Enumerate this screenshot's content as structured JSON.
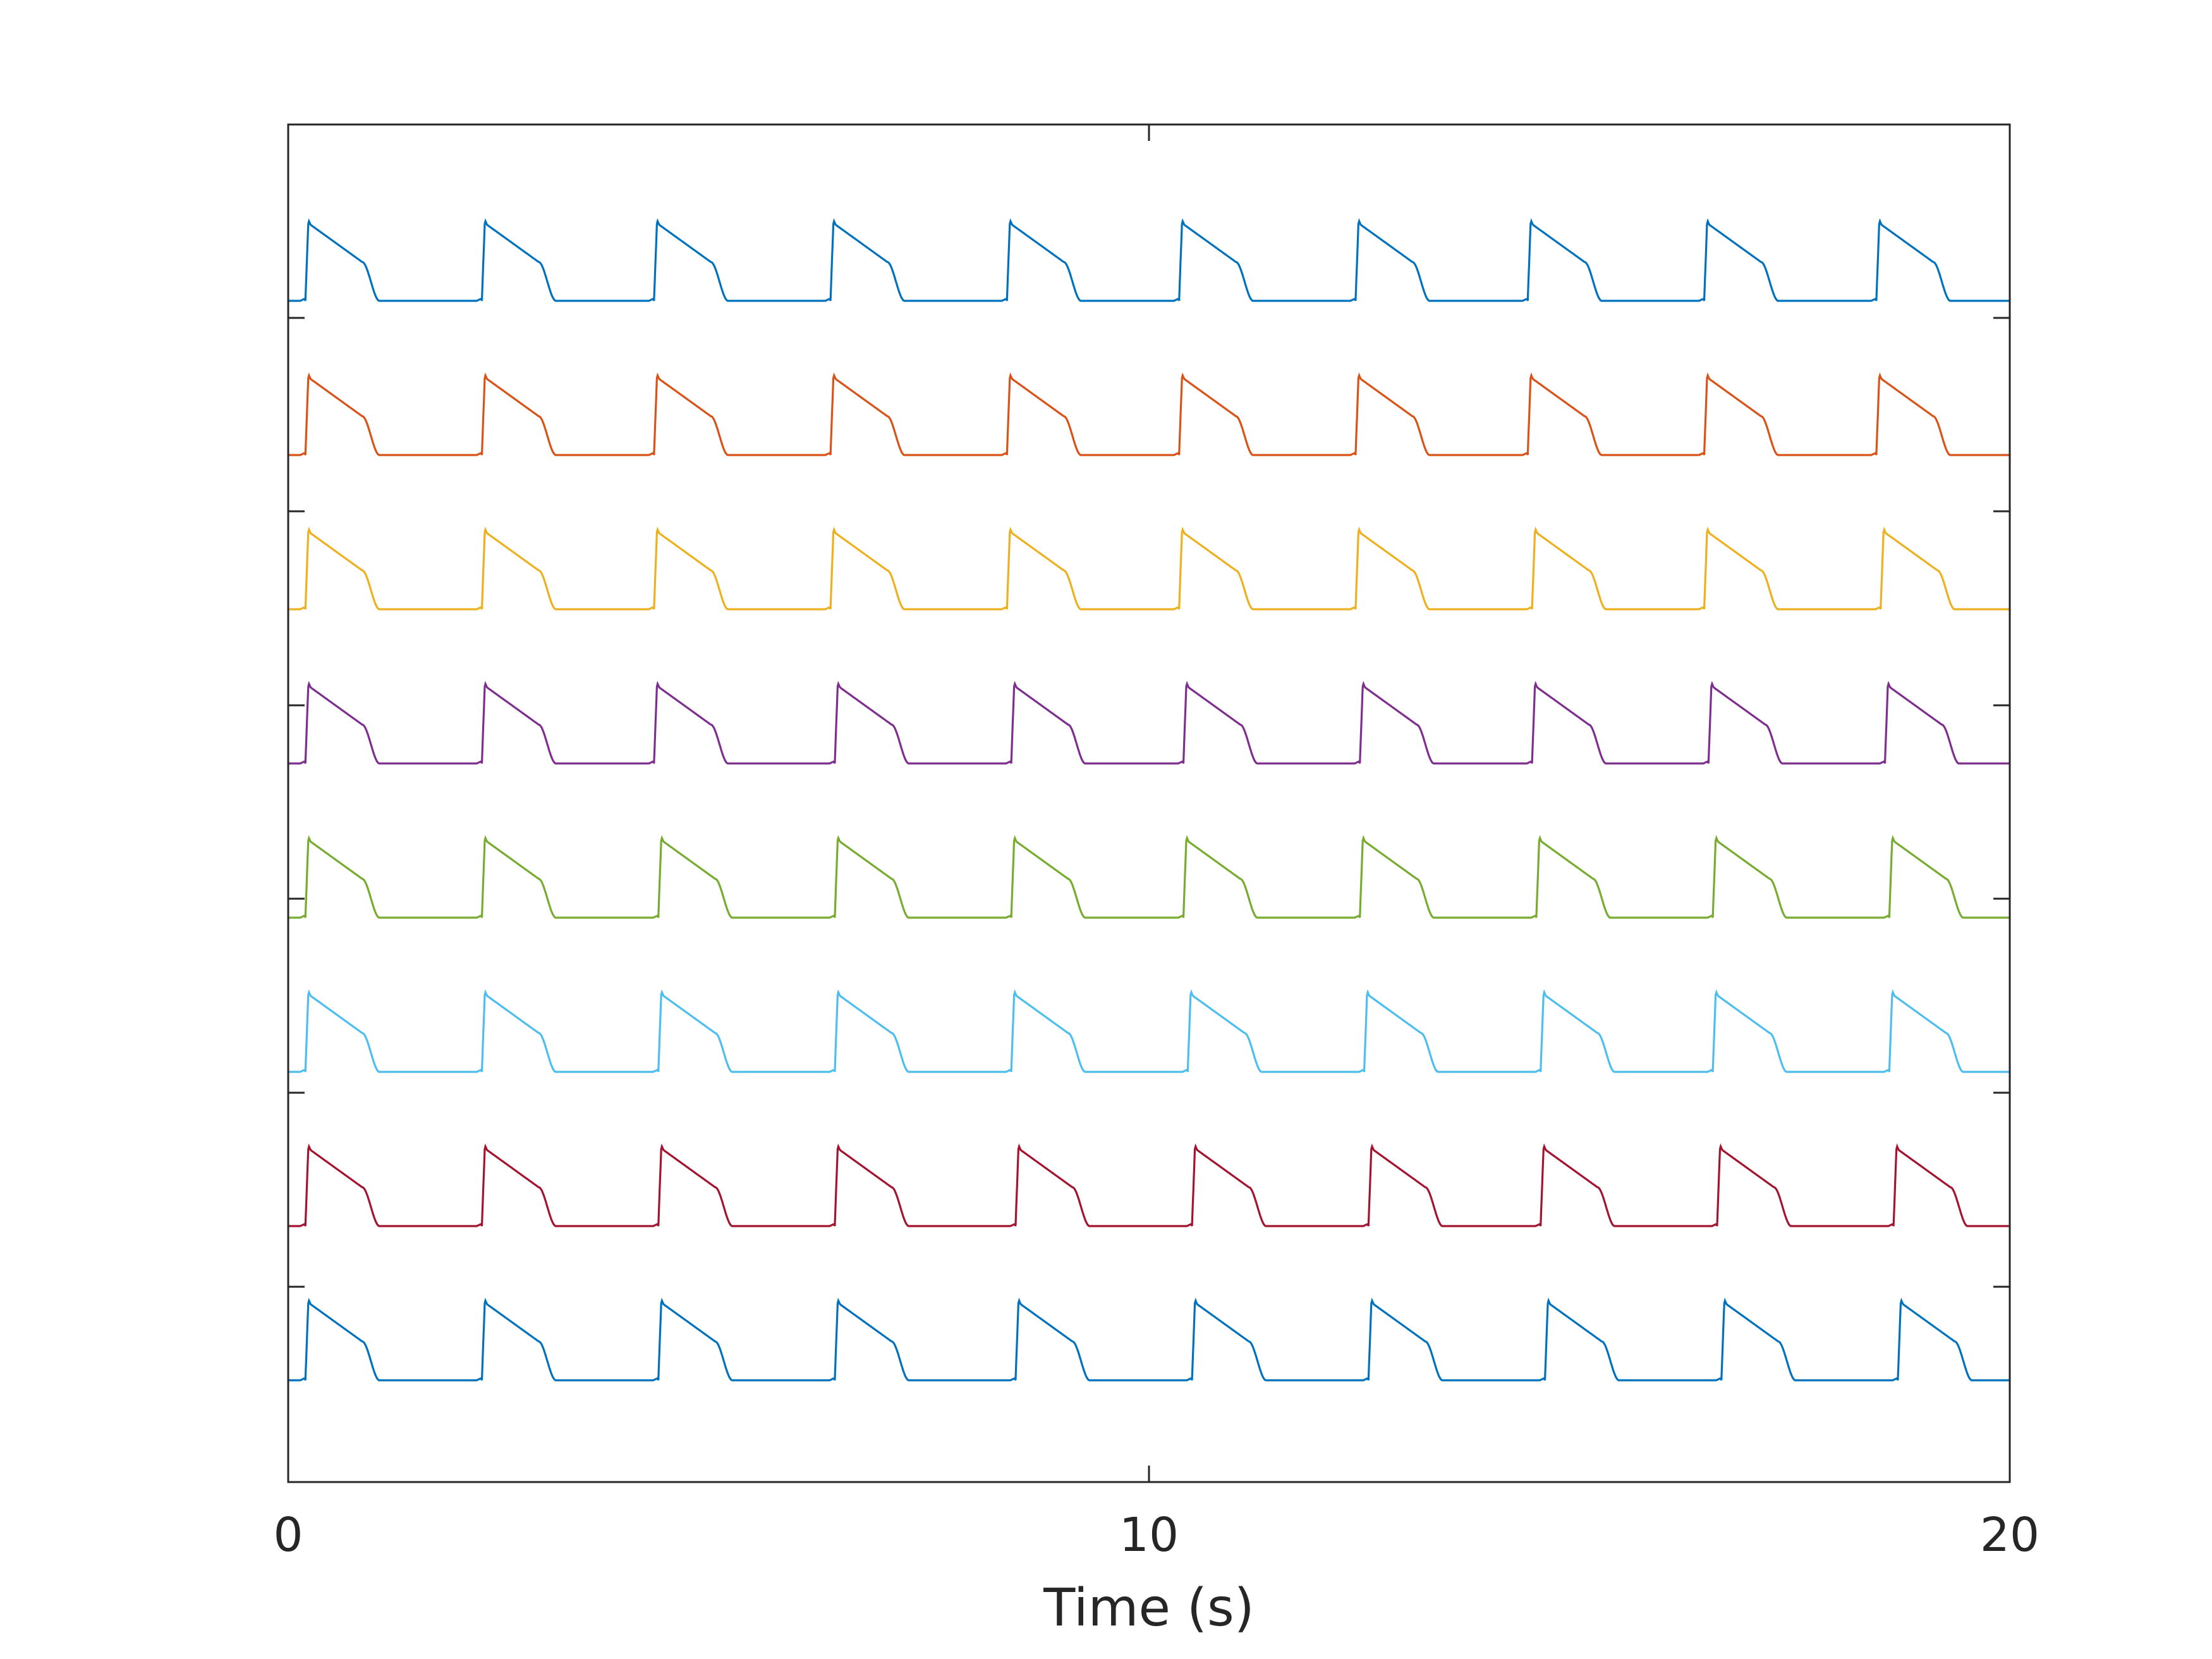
{
  "chart_data": {
    "type": "line",
    "title": "",
    "xlabel": "Time (s)",
    "ylabel": "",
    "xlim": [
      0,
      20
    ],
    "xticks": [
      0,
      10,
      20
    ],
    "xtick_labels": [
      "0",
      "10",
      "20"
    ],
    "yticks_unlabeled": 6,
    "grid": false,
    "legend": "none",
    "trace_form": "stacked cardiac action-potential traces (upstroke, plateau, repolarization, rest), one per row, offset vertically",
    "series": [
      {
        "color": "#0072BD",
        "onsets": [
          0.2,
          2.25,
          4.25,
          6.3,
          8.35,
          10.35,
          12.4,
          14.4,
          16.45,
          18.45
        ]
      },
      {
        "color": "#D95319",
        "onsets": [
          0.2,
          2.25,
          4.25,
          6.3,
          8.35,
          10.35,
          12.4,
          14.4,
          16.45,
          18.45
        ]
      },
      {
        "color": "#EDB120",
        "onsets": [
          0.2,
          2.25,
          4.25,
          6.3,
          8.35,
          10.35,
          12.4,
          14.45,
          16.45,
          18.5
        ]
      },
      {
        "color": "#7E2F8E",
        "onsets": [
          0.2,
          2.25,
          4.25,
          6.35,
          8.4,
          10.4,
          12.45,
          14.45,
          16.5,
          18.55
        ]
      },
      {
        "color": "#77AC30",
        "onsets": [
          0.2,
          2.25,
          4.3,
          6.35,
          8.4,
          10.4,
          12.45,
          14.5,
          16.55,
          18.6
        ]
      },
      {
        "color": "#4DBEEE",
        "onsets": [
          0.2,
          2.25,
          4.3,
          6.35,
          8.4,
          10.45,
          12.5,
          14.55,
          16.55,
          18.6
        ]
      },
      {
        "color": "#A2142F",
        "onsets": [
          0.2,
          2.25,
          4.3,
          6.35,
          8.45,
          10.5,
          12.55,
          14.55,
          16.6,
          18.65
        ]
      },
      {
        "color": "#0072BD",
        "onsets": [
          0.2,
          2.25,
          4.3,
          6.35,
          8.45,
          10.5,
          12.55,
          14.6,
          16.65,
          18.7
        ]
      }
    ]
  }
}
